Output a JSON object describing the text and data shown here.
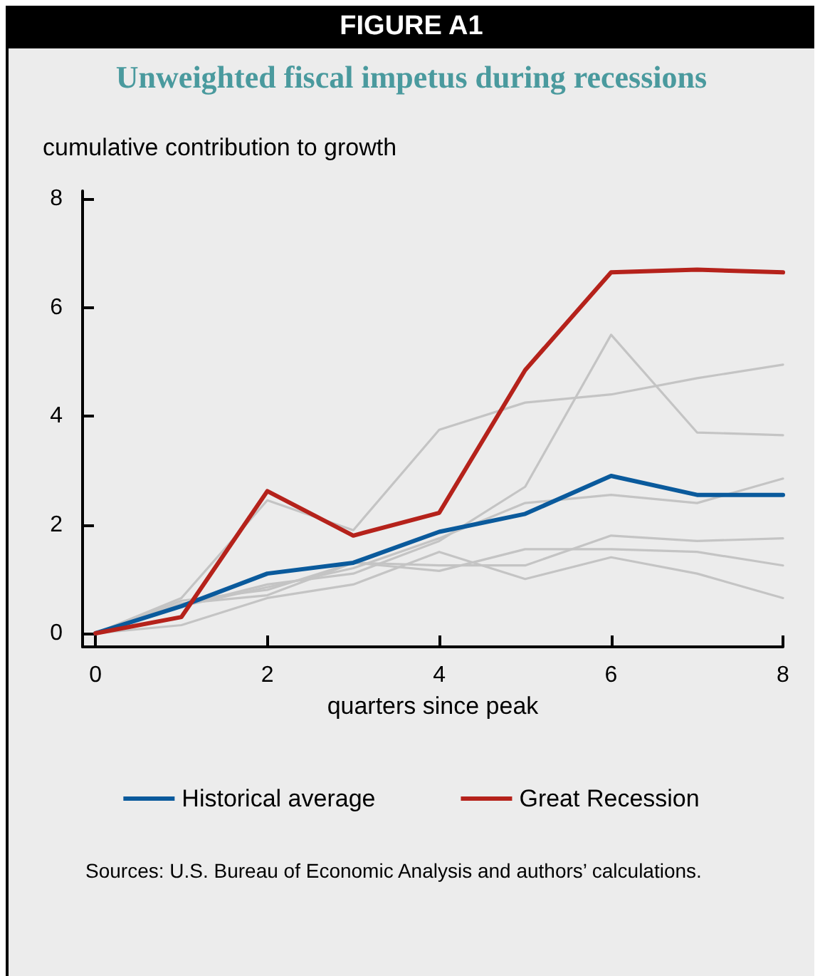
{
  "chart_data": {
    "type": "line",
    "title": "Unweighted fiscal impetus during recessions",
    "ylabel": "cumulative contribution to growth",
    "xlabel": "quarters since peak",
    "annotations": [
      "FIGURE A1",
      "Sources: U.S. Bureau of Economic Analysis and authors’ calculations."
    ],
    "x": [
      0,
      1,
      2,
      3,
      4,
      5,
      6,
      7,
      8
    ],
    "series": [
      {
        "color": "#c4c4c4",
        "values": [
          0,
          0.5,
          0.9,
          1.1,
          1.7,
          2.7,
          5.5,
          3.7,
          3.65
        ]
      },
      {
        "color": "#c4c4c4",
        "values": [
          0,
          0.65,
          2.45,
          1.9,
          3.75,
          4.25,
          4.4,
          4.7,
          4.95
        ]
      },
      {
        "color": "#c4c4c4",
        "values": [
          0,
          0.5,
          0.85,
          1.2,
          1.75,
          2.4,
          2.55,
          2.4,
          2.85
        ]
      },
      {
        "color": "#c4c4c4",
        "values": [
          0,
          0.6,
          0.8,
          1.3,
          1.25,
          1.25,
          1.8,
          1.7,
          1.75
        ]
      },
      {
        "color": "#c4c4c4",
        "values": [
          0,
          0.55,
          0.7,
          1.3,
          1.15,
          1.55,
          1.55,
          1.5,
          1.25
        ]
      },
      {
        "color": "#c4c4c4",
        "values": [
          0,
          0.15,
          0.65,
          0.9,
          1.5,
          1.0,
          1.4,
          1.1,
          0.65
        ]
      },
      {
        "name": "Historical average",
        "color": "#0a5a9c",
        "values": [
          0,
          0.5,
          1.1,
          1.3,
          1.87,
          2.2,
          2.9,
          2.55,
          2.55
        ]
      },
      {
        "name": "Great Recession",
        "color": "#b5221b",
        "values": [
          0,
          0.3,
          2.62,
          1.8,
          2.22,
          4.85,
          6.65,
          6.7,
          6.65
        ]
      }
    ],
    "xlim": [
      -0.15,
      8
    ],
    "xticks": [
      0,
      2,
      4,
      6,
      8
    ],
    "ylim": [
      -0.25,
      8.15
    ],
    "yticks": [
      0,
      2,
      4,
      6,
      8
    ],
    "grid": false,
    "legend": "bottom",
    "marker": "none",
    "line_style": "solid"
  }
}
